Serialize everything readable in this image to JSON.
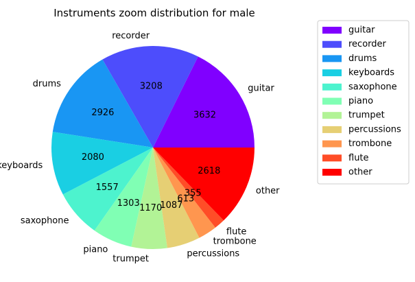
{
  "chart_data": {
    "type": "pie",
    "title": "Instruments zoom distribution for male",
    "categories": [
      "guitar",
      "recorder",
      "drums",
      "keyboards",
      "saxophone",
      "piano",
      "trumpet",
      "percussions",
      "trombone",
      "flute",
      "other"
    ],
    "values": [
      3632,
      3208,
      2926,
      2080,
      1557,
      1303,
      1170,
      1087,
      613,
      355,
      2618
    ],
    "colors": [
      "#8000ff",
      "#4d4dfc",
      "#1996f3",
      "#1acfe3",
      "#4df3ce",
      "#80ffb4",
      "#b2f396",
      "#e6cf74",
      "#ff964f",
      "#ff4d27",
      "#ff0000"
    ],
    "legend": {
      "placement": "right",
      "labels": [
        "guitar",
        "recorder",
        "drums",
        "keyboards",
        "saxophone",
        "piano",
        "trumpet",
        "percussions",
        "trombone",
        "flute",
        "other"
      ]
    }
  }
}
